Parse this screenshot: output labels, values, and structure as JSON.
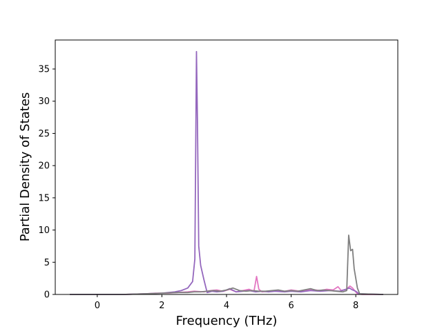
{
  "chart_data": {
    "type": "line",
    "title": "",
    "xlabel": "Frequency (THz)",
    "ylabel": "Partial Density of States",
    "xlim": [
      -1.3,
      9.3
    ],
    "ylim": [
      0,
      39.5
    ],
    "xticks": [
      0,
      2,
      4,
      6,
      8
    ],
    "yticks": [
      0,
      5,
      10,
      15,
      20,
      25,
      30,
      35
    ],
    "grid": false,
    "legend": "none",
    "series": [
      {
        "color": "#e377c2",
        "x": [
          -0.85,
          0.8,
          1.5,
          1.8,
          2.0,
          2.2,
          2.5,
          2.8,
          3.0,
          3.3,
          3.5,
          3.7,
          3.9,
          4.1,
          4.3,
          4.5,
          4.7,
          4.85,
          4.93,
          5.0,
          5.1,
          5.3,
          5.5,
          5.8,
          6.0,
          6.3,
          6.6,
          6.9,
          7.1,
          7.3,
          7.45,
          7.55,
          7.7,
          7.82,
          7.9,
          7.98,
          8.05,
          8.2,
          8.85
        ],
        "y": [
          0,
          0,
          0.1,
          0.2,
          0.2,
          0.2,
          0.3,
          0.4,
          0.5,
          0.4,
          0.6,
          0.7,
          0.5,
          0.8,
          0.4,
          0.6,
          0.8,
          0.5,
          2.8,
          0.8,
          0.4,
          0.5,
          0.6,
          0.5,
          0.7,
          0.5,
          0.8,
          0.6,
          0.8,
          0.7,
          1.2,
          0.6,
          0.8,
          1.3,
          1.0,
          0.5,
          0.1,
          0,
          0
        ]
      },
      {
        "color": "#9467bd",
        "x": [
          -0.85,
          0.8,
          1.5,
          2.0,
          2.4,
          2.6,
          2.8,
          2.95,
          3.02,
          3.07,
          3.1,
          3.14,
          3.2,
          3.3,
          3.4,
          3.55,
          3.7,
          3.9,
          4.1,
          4.3,
          4.5,
          4.7,
          4.9,
          5.1,
          5.3,
          5.5,
          5.8,
          6.0,
          6.3,
          6.6,
          6.9,
          7.2,
          7.5,
          7.7,
          7.8,
          7.9,
          8.0,
          8.1,
          8.85
        ],
        "y": [
          0,
          0,
          0.1,
          0.2,
          0.4,
          0.6,
          1.0,
          2.0,
          5.5,
          37.7,
          27.0,
          7.5,
          4.5,
          2.3,
          0.3,
          0.5,
          0.4,
          0.5,
          0.9,
          0.4,
          0.5,
          0.6,
          0.4,
          0.5,
          0.4,
          0.5,
          0.4,
          0.5,
          0.4,
          0.6,
          0.5,
          0.6,
          0.5,
          0.8,
          1.0,
          0.7,
          0.5,
          0.1,
          0
        ]
      },
      {
        "color": "#7f7f7f",
        "x": [
          -0.85,
          0.8,
          1.5,
          2.0,
          2.5,
          2.8,
          3.0,
          3.2,
          3.4,
          3.6,
          3.8,
          4.0,
          4.2,
          4.4,
          4.6,
          4.8,
          5.0,
          5.2,
          5.4,
          5.6,
          5.8,
          6.0,
          6.2,
          6.4,
          6.6,
          6.8,
          7.0,
          7.2,
          7.4,
          7.6,
          7.72,
          7.78,
          7.84,
          7.9,
          7.95,
          8.0,
          8.05,
          8.12,
          8.85
        ],
        "y": [
          0,
          0,
          0.1,
          0.2,
          0.3,
          0.3,
          0.4,
          0.4,
          0.5,
          0.6,
          0.5,
          0.7,
          1.0,
          0.6,
          0.5,
          0.6,
          0.5,
          0.5,
          0.6,
          0.7,
          0.5,
          0.6,
          0.5,
          0.7,
          0.9,
          0.6,
          0.7,
          0.6,
          0.5,
          0.4,
          0.6,
          9.2,
          6.8,
          7.0,
          4.0,
          2.5,
          1.0,
          0.1,
          0
        ]
      }
    ]
  }
}
